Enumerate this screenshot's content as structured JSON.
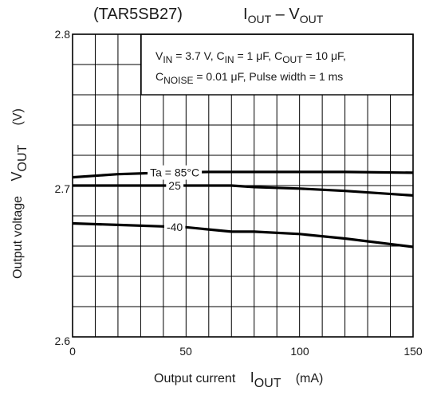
{
  "chart_data": {
    "type": "line",
    "title": {
      "part": "(TAR5SB27)",
      "i_main": "I",
      "i_sub": "OUT",
      "dash": " – ",
      "v_main": "V",
      "v_sub": "OUT"
    },
    "x_axis": {
      "lead": "Output current",
      "sym_main": "I",
      "sym_sub": "OUT",
      "unit": "(mA)",
      "min": 0,
      "max": 150,
      "tick_labels": [
        "0",
        "50",
        "100",
        "150"
      ],
      "minor_step": 10
    },
    "y_axis": {
      "lead": "Output voltage",
      "sym_main": "V",
      "sym_sub": "OUT",
      "unit": "(V)",
      "min": 2.6,
      "max": 2.8,
      "tick_labels": [
        "2.6",
        "2.7",
        "2.8"
      ],
      "minor_step": 0.02
    },
    "grid": true,
    "conditions": {
      "line1": [
        {
          "t": "V",
          "s": ""
        },
        {
          "t": "IN",
          "s": "sub"
        },
        {
          "t": " = 3.7 V, C",
          "s": ""
        },
        {
          "t": "IN",
          "s": "sub"
        },
        {
          "t": " = 1 μF, C",
          "s": ""
        },
        {
          "t": "OUT",
          "s": "sub"
        },
        {
          "t": " = 10 μF,",
          "s": ""
        }
      ],
      "line2": [
        {
          "t": "C",
          "s": ""
        },
        {
          "t": "NOISE",
          "s": "sub"
        },
        {
          "t": " = 0.01 μF, Pulse width = 1 ms",
          "s": ""
        }
      ]
    },
    "series": [
      {
        "name": "Ta = 85°C",
        "label_at_x": 45,
        "x": [
          0,
          20,
          40,
          60,
          80,
          100,
          120,
          150
        ],
        "y": [
          2.7055,
          2.7075,
          2.7085,
          2.709,
          2.709,
          2.709,
          2.709,
          2.7085
        ]
      },
      {
        "name": "25",
        "label_at_x": 45,
        "x": [
          0,
          20,
          40,
          60,
          70,
          80,
          100,
          120,
          150
        ],
        "y": [
          2.7,
          2.7,
          2.7,
          2.7,
          2.7,
          2.699,
          2.698,
          2.6965,
          2.6935
        ]
      },
      {
        "name": "-40",
        "label_at_x": 45,
        "x": [
          0,
          20,
          40,
          50,
          60,
          70,
          80,
          100,
          120,
          150
        ],
        "y": [
          2.675,
          2.674,
          2.673,
          2.6725,
          2.671,
          2.6695,
          2.6695,
          2.668,
          2.665,
          2.6595
        ]
      }
    ],
    "colors": {
      "line": "#000000",
      "grid": "#000000",
      "text": "#1a1a1a"
    }
  }
}
